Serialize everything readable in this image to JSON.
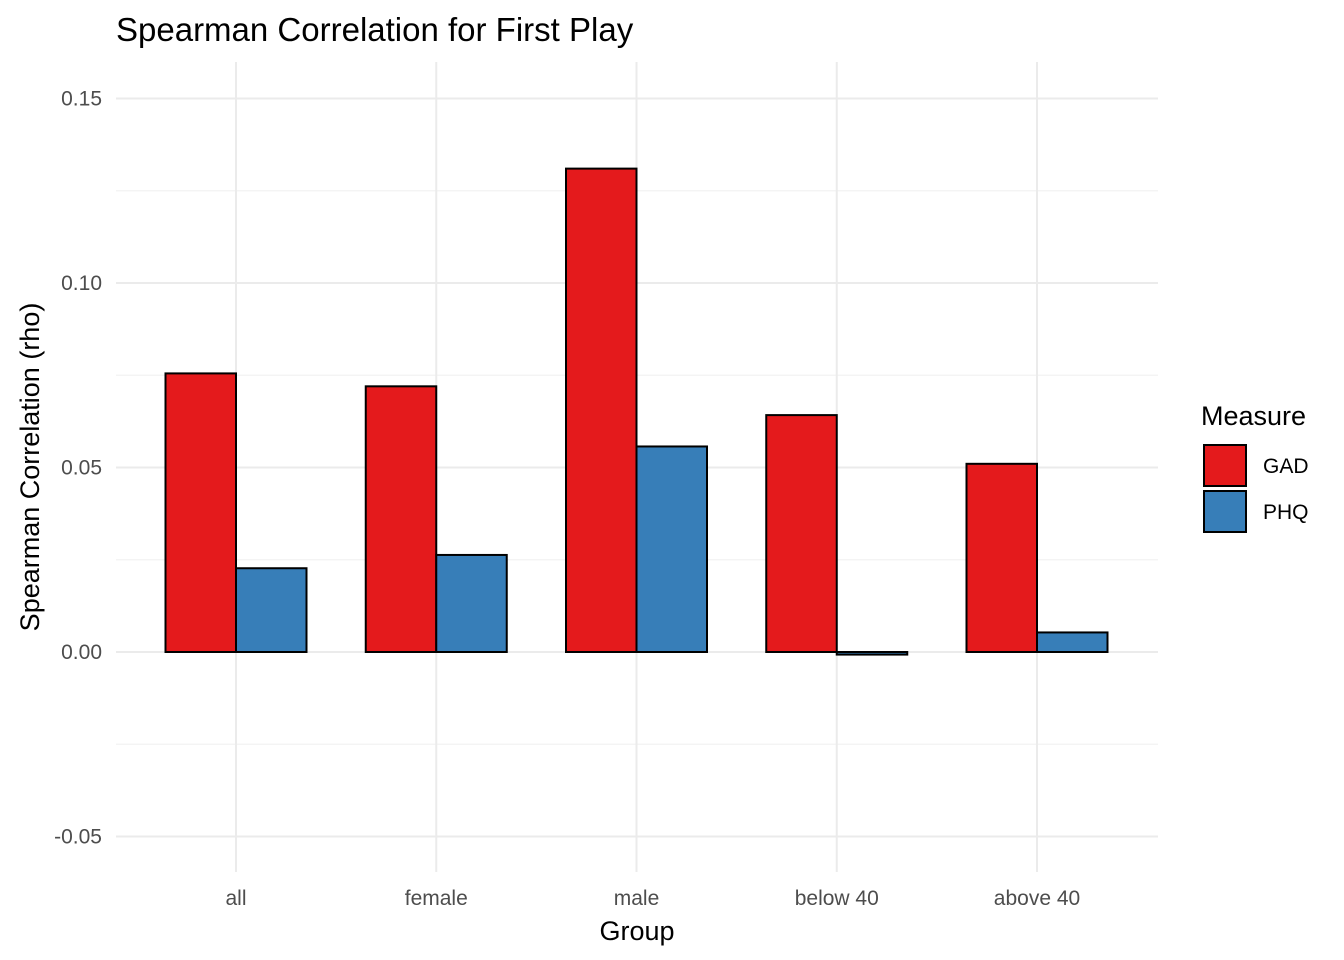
{
  "chart_data": {
    "type": "bar",
    "title": "Spearman Correlation for First Play",
    "xlabel": "Group",
    "ylabel": "Spearman Correlation (rho)",
    "categories": [
      "all",
      "female",
      "male",
      "below 40",
      "above 40"
    ],
    "series": [
      {
        "name": "GAD",
        "color": "#E41A1C",
        "values": [
          0.0755,
          0.072,
          0.131,
          0.0642,
          0.051
        ]
      },
      {
        "name": "PHQ",
        "color": "#377EB8",
        "values": [
          0.0227,
          0.0263,
          0.0557,
          -0.0007,
          0.0053
        ]
      }
    ],
    "ylim": [
      -0.06,
      0.16
    ],
    "yticks": [
      -0.05,
      0.0,
      0.05,
      0.1,
      0.15
    ],
    "ytick_labels": [
      "-0.05",
      "0.00",
      "0.05",
      "0.10",
      "0.15"
    ],
    "grid": true,
    "legend": {
      "title": "Measure",
      "position": "right"
    }
  }
}
